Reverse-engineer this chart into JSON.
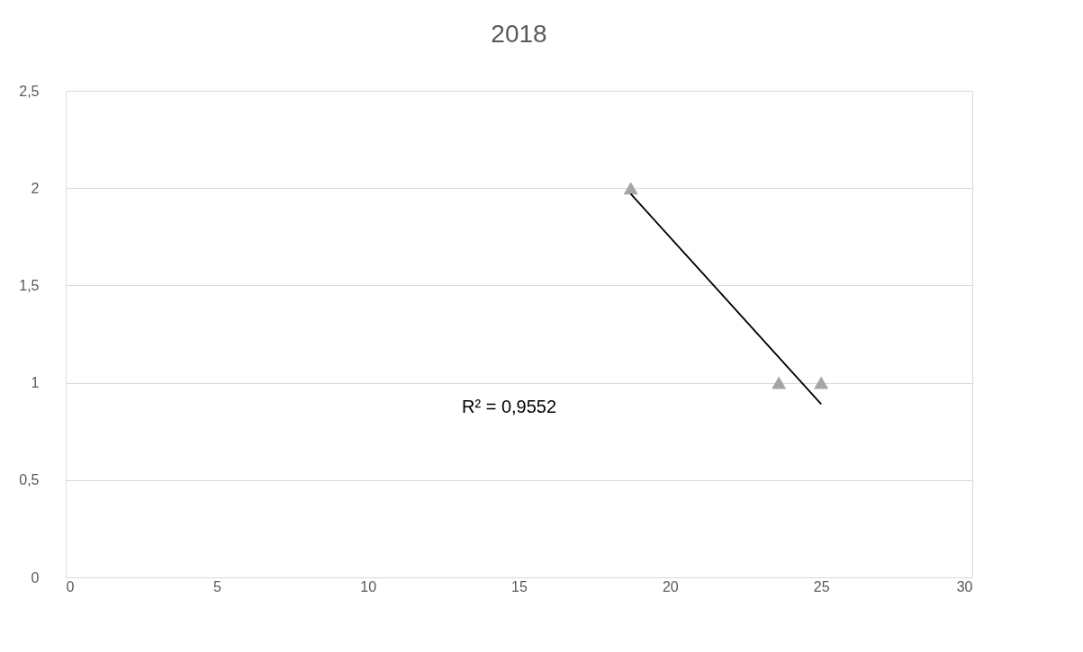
{
  "chart_data": {
    "type": "scatter",
    "title": "2018",
    "series": [
      {
        "color": "#a5a5a5",
        "marker": "triangle",
        "x": [
          18.7,
          23.6,
          25
        ],
        "values": [
          2,
          1,
          1
        ]
      },
      {
        "type": "line",
        "color": "#000000",
        "marker": "none",
        "line_style": "solid",
        "x": [
          18.7,
          25
        ],
        "values": [
          1.97,
          0.89
        ]
      }
    ],
    "xlim": [
      0,
      30
    ],
    "xticks": [
      0,
      5,
      10,
      15,
      20,
      25,
      30
    ],
    "ylim": [
      0,
      2.5
    ],
    "yticks": [
      0,
      {
        "value": 0.5,
        "label": "0,5"
      },
      1,
      {
        "value": 1.5,
        "label": "1,5"
      },
      2,
      {
        "value": 2.5,
        "label": "2,5"
      }
    ],
    "grid": "y",
    "annotations": [
      "R² = 0,9552"
    ]
  }
}
